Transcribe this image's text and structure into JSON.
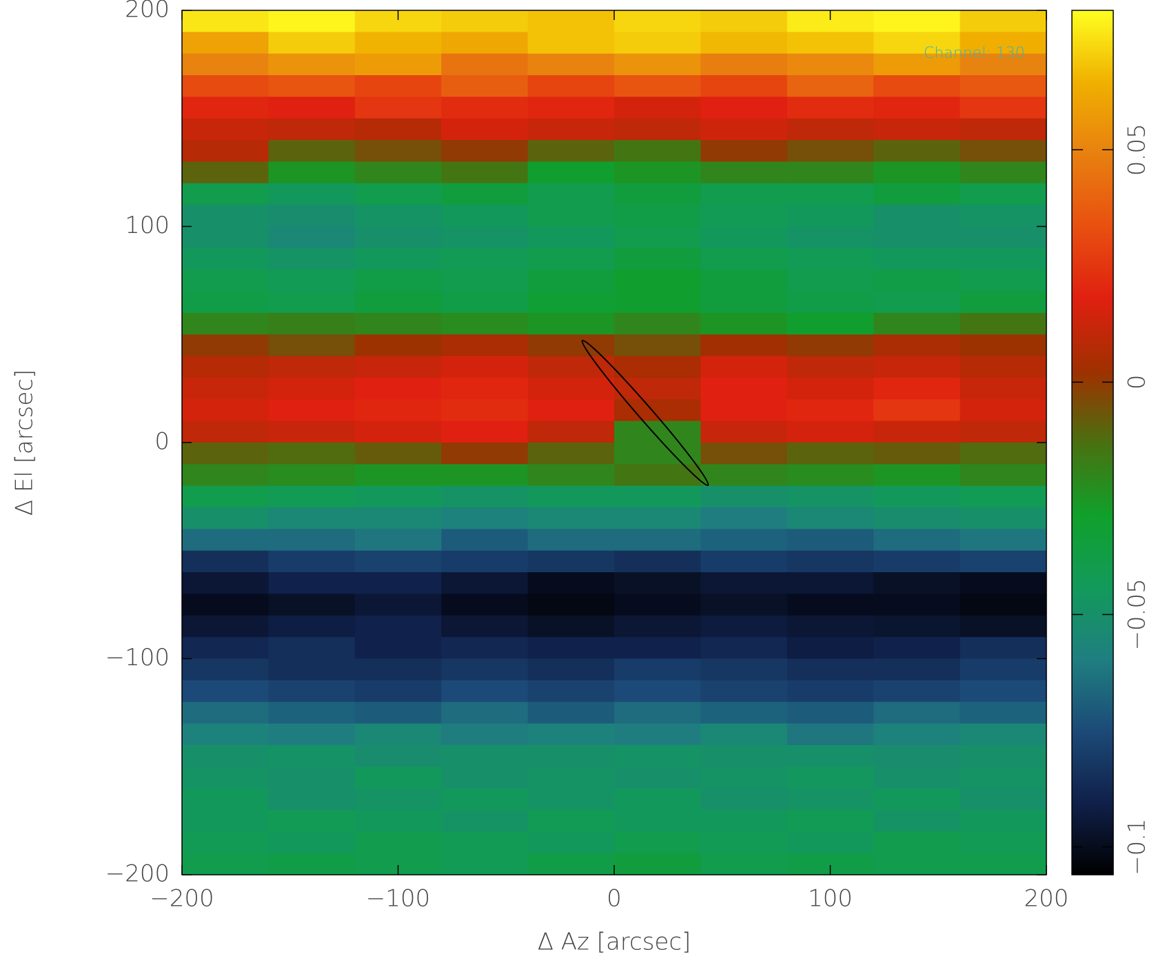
{
  "chart_data": {
    "type": "heatmap",
    "x_label": "Δ Az [arcsec]",
    "y_label": "Δ El [arcsec]",
    "annotation": "Channel: 130",
    "xlim": [
      -200,
      200
    ],
    "ylim": [
      -200,
      200
    ],
    "xticks": [
      {
        "value": -200,
        "label": "−200"
      },
      {
        "value": -100,
        "label": "−100"
      },
      0,
      100,
      200
    ],
    "yticks": [
      {
        "value": -200,
        "label": "−200"
      },
      {
        "value": -100,
        "label": "−100"
      },
      0,
      100,
      200
    ],
    "zlim": [
      -0.106,
      0.08
    ],
    "colorbar_ticks": [
      {
        "value": -0.1,
        "label": "−0.1"
      },
      {
        "value": -0.05,
        "label": "−0.05"
      },
      0,
      0.05
    ],
    "colormap": [
      "#000000",
      "#10204a",
      "#1c4a78",
      "#1f7f80",
      "#129a5a",
      "#10a02a",
      "#4a7010",
      "#a03000",
      "#e02010",
      "#e85010",
      "#e88010",
      "#f0b000",
      "#ffff20"
    ],
    "z": [
      [
        0.075,
        0.078,
        0.072,
        0.07,
        0.068,
        0.072,
        0.07,
        0.076,
        0.078,
        0.07
      ],
      [
        0.06,
        0.07,
        0.065,
        0.062,
        0.068,
        0.07,
        0.066,
        0.068,
        0.072,
        0.064
      ],
      [
        0.05,
        0.055,
        0.058,
        0.045,
        0.05,
        0.055,
        0.048,
        0.052,
        0.058,
        0.05
      ],
      [
        0.032,
        0.035,
        0.03,
        0.038,
        0.03,
        0.035,
        0.03,
        0.04,
        0.032,
        0.036
      ],
      [
        0.02,
        0.018,
        0.025,
        0.022,
        0.02,
        0.015,
        0.018,
        0.022,
        0.02,
        0.025
      ],
      [
        0.012,
        0.01,
        0.008,
        0.015,
        0.012,
        0.01,
        0.014,
        0.01,
        0.012,
        0.01
      ],
      [
        0.008,
        -0.01,
        -0.005,
        0.0,
        -0.01,
        -0.015,
        0.0,
        -0.005,
        -0.01,
        -0.005
      ],
      [
        -0.01,
        -0.025,
        -0.02,
        -0.015,
        -0.03,
        -0.025,
        -0.02,
        -0.02,
        -0.025,
        -0.02
      ],
      [
        -0.04,
        -0.045,
        -0.04,
        -0.035,
        -0.04,
        -0.035,
        -0.04,
        -0.04,
        -0.035,
        -0.04
      ],
      [
        -0.05,
        -0.052,
        -0.048,
        -0.045,
        -0.04,
        -0.038,
        -0.042,
        -0.045,
        -0.05,
        -0.048
      ],
      [
        -0.05,
        -0.055,
        -0.05,
        -0.048,
        -0.045,
        -0.04,
        -0.045,
        -0.048,
        -0.05,
        -0.05
      ],
      [
        -0.045,
        -0.048,
        -0.045,
        -0.042,
        -0.04,
        -0.035,
        -0.04,
        -0.042,
        -0.045,
        -0.045
      ],
      [
        -0.04,
        -0.042,
        -0.038,
        -0.04,
        -0.035,
        -0.03,
        -0.035,
        -0.04,
        -0.038,
        -0.04
      ],
      [
        -0.038,
        -0.04,
        -0.035,
        -0.038,
        -0.032,
        -0.03,
        -0.035,
        -0.038,
        -0.04,
        -0.035
      ],
      [
        -0.02,
        -0.018,
        -0.02,
        -0.022,
        -0.025,
        -0.02,
        -0.025,
        -0.03,
        -0.02,
        -0.015
      ],
      [
        0.0,
        -0.005,
        0.002,
        0.005,
        0.0,
        -0.005,
        0.003,
        0.0,
        0.005,
        0.002
      ],
      [
        0.008,
        0.01,
        0.012,
        0.015,
        0.01,
        0.005,
        0.015,
        0.01,
        0.012,
        0.008
      ],
      [
        0.012,
        0.015,
        0.018,
        0.02,
        0.015,
        0.01,
        0.018,
        0.015,
        0.02,
        0.012
      ],
      [
        0.015,
        0.018,
        0.02,
        0.022,
        0.018,
        0.005,
        0.018,
        0.02,
        0.025,
        0.015
      ],
      [
        0.01,
        0.012,
        0.015,
        0.018,
        0.01,
        -0.02,
        0.012,
        0.015,
        0.012,
        0.01
      ],
      [
        -0.01,
        -0.012,
        -0.008,
        0.0,
        -0.01,
        -0.02,
        -0.005,
        -0.01,
        -0.008,
        -0.012
      ],
      [
        -0.02,
        -0.022,
        -0.025,
        -0.025,
        -0.02,
        -0.015,
        -0.02,
        -0.022,
        -0.025,
        -0.02
      ],
      [
        -0.04,
        -0.042,
        -0.045,
        -0.048,
        -0.045,
        -0.045,
        -0.05,
        -0.048,
        -0.045,
        -0.042
      ],
      [
        -0.05,
        -0.055,
        -0.055,
        -0.058,
        -0.055,
        -0.055,
        -0.06,
        -0.055,
        -0.052,
        -0.05
      ],
      [
        -0.065,
        -0.065,
        -0.062,
        -0.07,
        -0.065,
        -0.065,
        -0.068,
        -0.07,
        -0.065,
        -0.062
      ],
      [
        -0.085,
        -0.08,
        -0.078,
        -0.08,
        -0.082,
        -0.085,
        -0.08,
        -0.082,
        -0.08,
        -0.078
      ],
      [
        -0.095,
        -0.09,
        -0.09,
        -0.095,
        -0.1,
        -0.098,
        -0.095,
        -0.095,
        -0.098,
        -0.1
      ],
      [
        -0.1,
        -0.098,
        -0.095,
        -0.1,
        -0.102,
        -0.1,
        -0.098,
        -0.1,
        -0.1,
        -0.102
      ],
      [
        -0.095,
        -0.092,
        -0.09,
        -0.095,
        -0.098,
        -0.095,
        -0.093,
        -0.095,
        -0.096,
        -0.098
      ],
      [
        -0.088,
        -0.085,
        -0.09,
        -0.088,
        -0.09,
        -0.09,
        -0.088,
        -0.092,
        -0.09,
        -0.085
      ],
      [
        -0.082,
        -0.085,
        -0.085,
        -0.082,
        -0.085,
        -0.08,
        -0.082,
        -0.085,
        -0.085,
        -0.08
      ],
      [
        -0.075,
        -0.078,
        -0.08,
        -0.075,
        -0.078,
        -0.075,
        -0.078,
        -0.08,
        -0.078,
        -0.075
      ],
      [
        -0.065,
        -0.068,
        -0.07,
        -0.065,
        -0.07,
        -0.065,
        -0.068,
        -0.07,
        -0.065,
        -0.068
      ],
      [
        -0.058,
        -0.06,
        -0.055,
        -0.06,
        -0.058,
        -0.06,
        -0.055,
        -0.062,
        -0.058,
        -0.055
      ],
      [
        -0.05,
        -0.048,
        -0.052,
        -0.05,
        -0.05,
        -0.048,
        -0.05,
        -0.05,
        -0.052,
        -0.05
      ],
      [
        -0.048,
        -0.05,
        -0.045,
        -0.05,
        -0.048,
        -0.05,
        -0.048,
        -0.046,
        -0.05,
        -0.048
      ],
      [
        -0.045,
        -0.05,
        -0.048,
        -0.045,
        -0.048,
        -0.045,
        -0.05,
        -0.048,
        -0.045,
        -0.05
      ],
      [
        -0.045,
        -0.042,
        -0.045,
        -0.048,
        -0.042,
        -0.045,
        -0.045,
        -0.042,
        -0.048,
        -0.045
      ],
      [
        -0.042,
        -0.045,
        -0.04,
        -0.042,
        -0.045,
        -0.04,
        -0.042,
        -0.045,
        -0.04,
        -0.042
      ],
      [
        -0.04,
        -0.038,
        -0.04,
        -0.042,
        -0.038,
        -0.035,
        -0.04,
        -0.038,
        -0.04,
        -0.04
      ]
    ]
  }
}
